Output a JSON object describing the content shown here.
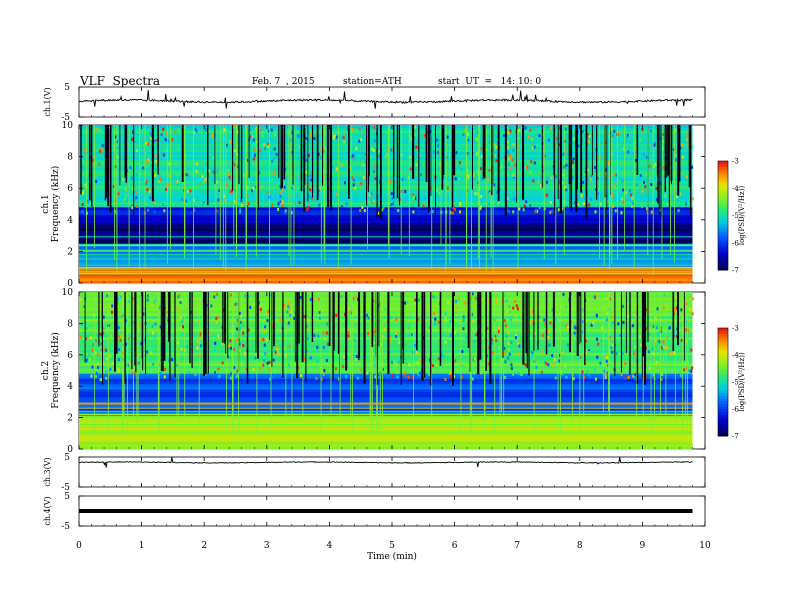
{
  "header": {
    "title": "VLF  Spectra",
    "date": "Feb. 7  , 2015",
    "station": "station=ATH",
    "start": "start  UT  =   14: 10: 0"
  },
  "chart_data": [
    {
      "type": "line",
      "panel": "ch1-waveform",
      "ylabel": "ch.1(V)",
      "yticks": [
        "5",
        "-5"
      ],
      "ylim": [
        -5,
        5
      ],
      "xlim": [
        0,
        10
      ],
      "data_end_min": 9.8,
      "level_v": 0.3,
      "color": "#000000"
    },
    {
      "type": "heatmap",
      "panel": "ch1-spectrogram",
      "ylabel": "ch.1\nFrequency  (kHz)",
      "ylabel_line1": "ch.1",
      "ylabel_line2": "Frequency  (kHz)",
      "y": [
        0,
        2,
        4,
        6,
        8,
        10
      ],
      "ylim": [
        0,
        10
      ],
      "xlim": [
        0,
        9.8
      ],
      "colorbar": {
        "label": "log(PSD/(V²/Hz))",
        "ticks": [
          "-3",
          "-4",
          "-5",
          "-6",
          "-7"
        ],
        "range": [
          -7,
          -3
        ]
      },
      "bands": [
        {
          "from": 0.0,
          "to": 1.0,
          "level": -3.4
        },
        {
          "from": 1.0,
          "to": 2.5,
          "level": -5.6
        },
        {
          "from": 2.5,
          "to": 3.8,
          "level": -6.8
        },
        {
          "from": 3.8,
          "to": 4.8,
          "level": -6.3
        },
        {
          "from": 4.8,
          "to": 10.0,
          "level": -5.0
        }
      ]
    },
    {
      "type": "heatmap",
      "panel": "ch2-spectrogram",
      "ylabel_line1": "ch.2",
      "ylabel_line2": "Frequency  (kHz)",
      "y": [
        0,
        2,
        4,
        6,
        8,
        10
      ],
      "ylim": [
        0,
        10
      ],
      "xlim": [
        0,
        9.8
      ],
      "colorbar": {
        "label": "log(PSD/(V²/Hz))",
        "ticks": [
          "-3",
          "-4",
          "-5",
          "-6",
          "-7"
        ],
        "range": [
          -7,
          -3
        ]
      },
      "bands": [
        {
          "from": 0.0,
          "to": 2.2,
          "level": -4.2
        },
        {
          "from": 2.2,
          "to": 4.8,
          "level": -5.9
        },
        {
          "from": 4.8,
          "to": 10.0,
          "level": -4.6
        }
      ]
    },
    {
      "type": "line",
      "panel": "ch3-waveform",
      "ylabel": "ch.3(V)",
      "yticks": [
        "5",
        "-5"
      ],
      "ylim": [
        -5,
        5
      ],
      "xlim": [
        0,
        10
      ],
      "data_end_min": 9.8,
      "level_v": 3.2,
      "color": "#000000"
    },
    {
      "type": "line",
      "panel": "ch4-waveform",
      "ylabel": "ch.4(V)",
      "yticks": [
        "5",
        "-5"
      ],
      "ylim": [
        -5,
        5
      ],
      "xlim": [
        0,
        10
      ],
      "data_end_min": 9.8,
      "level_v": 0.0,
      "color": "#000000"
    }
  ],
  "xaxis": {
    "label": "Time  (min)",
    "ticks": [
      "0",
      "1",
      "2",
      "3",
      "4",
      "5",
      "6",
      "7",
      "8",
      "9",
      "10"
    ],
    "xlim": [
      0,
      10
    ]
  },
  "colors": {
    "low": "#000050",
    "mid": "#00c8c8",
    "high": "#ff2020"
  }
}
